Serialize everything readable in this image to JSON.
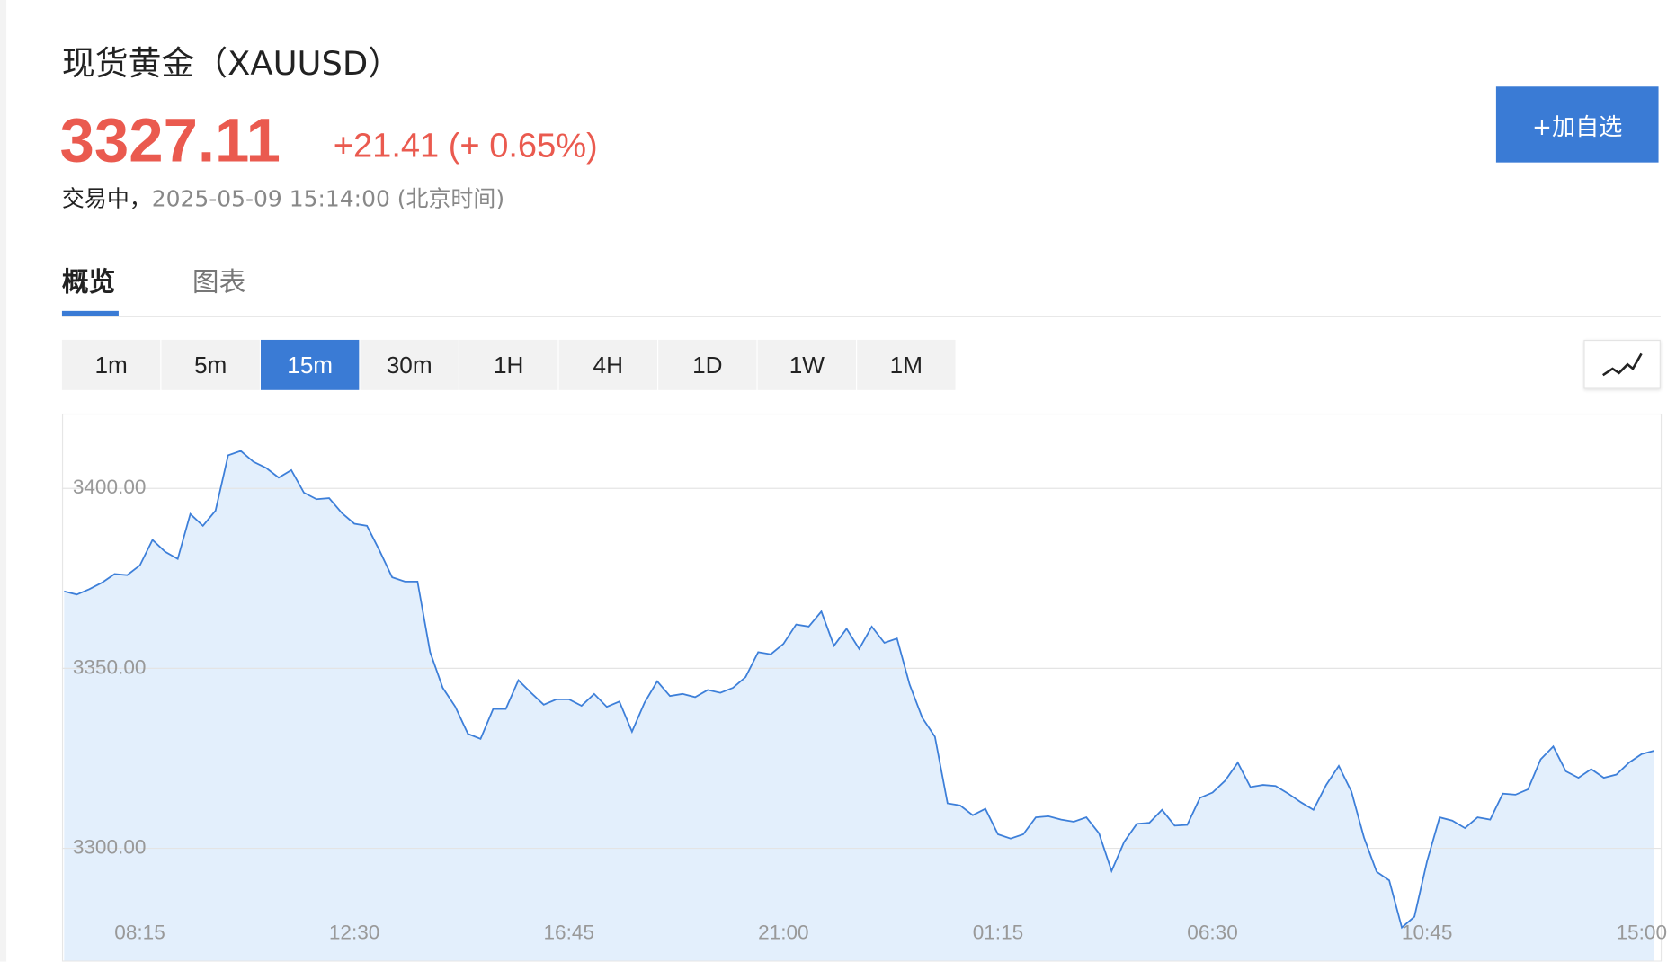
{
  "header": {
    "title": "现货黄金（XAUUSD）",
    "price": "3327.11",
    "change": "+21.41 (+ 0.65%)",
    "status": "交易中，",
    "time": "2025-05-09 15:14:00 (北京时间)",
    "button": "+加自选"
  },
  "tabs": {
    "items": [
      "概览",
      "图表"
    ],
    "active": 0
  },
  "intervals": {
    "items": [
      "1m",
      "5m",
      "15m",
      "30m",
      "1H",
      "4H",
      "1D",
      "1W",
      "1M"
    ],
    "active": 2
  },
  "chart_data": {
    "type": "area",
    "categories": [
      null,
      null,
      null,
      null,
      null,
      null,
      "08:15",
      null,
      null,
      null,
      null,
      null,
      null,
      null,
      null,
      null,
      null,
      null,
      null,
      null,
      null,
      null,
      null,
      "12:30",
      null,
      null,
      null,
      null,
      null,
      null,
      null,
      null,
      null,
      null,
      null,
      null,
      null,
      null,
      null,
      null,
      "16:45",
      null,
      null,
      null,
      null,
      null,
      null,
      null,
      null,
      null,
      null,
      null,
      null,
      null,
      null,
      null,
      null,
      "21:00",
      null,
      null,
      null,
      null,
      null,
      null,
      null,
      null,
      null,
      null,
      null,
      null,
      null,
      null,
      null,
      null,
      "01:15",
      null,
      null,
      null,
      null,
      null,
      null,
      null,
      null,
      null,
      null,
      null,
      null,
      null,
      null,
      null,
      null,
      "06:30",
      null,
      null,
      null,
      null,
      null,
      null,
      null,
      null,
      null,
      null,
      null,
      null,
      null,
      null,
      null,
      null,
      "10:45",
      null,
      null,
      null,
      null,
      null,
      null,
      null,
      null,
      null,
      null,
      null,
      null,
      null,
      null,
      null,
      null,
      "15:00",
      null
    ],
    "values": [
      3371.4,
      3370.5,
      3372.0,
      3373.8,
      3376.2,
      3375.9,
      3378.6,
      3385.7,
      3382.4,
      3380.4,
      3392.9,
      3389.6,
      3393.8,
      3409.2,
      3410.4,
      3407.4,
      3405.7,
      3403.0,
      3405.1,
      3398.8,
      3397.0,
      3397.3,
      3393.2,
      3390.2,
      3389.6,
      3382.7,
      3375.3,
      3374.1,
      3374.1,
      3354.5,
      3344.6,
      3339.3,
      3331.8,
      3330.4,
      3338.7,
      3338.7,
      3346.7,
      3343.2,
      3339.9,
      3341.4,
      3341.4,
      3339.6,
      3342.9,
      3339.3,
      3340.8,
      3332.4,
      3340.5,
      3346.4,
      3342.3,
      3342.9,
      3342.0,
      3344.0,
      3343.2,
      3344.6,
      3347.6,
      3354.5,
      3353.9,
      3356.8,
      3362.2,
      3361.6,
      3365.8,
      3356.3,
      3361.0,
      3355.4,
      3361.6,
      3357.1,
      3358.3,
      3345.5,
      3336.3,
      3331.0,
      3312.5,
      3311.9,
      3309.2,
      3311.0,
      3303.9,
      3302.7,
      3303.9,
      3308.6,
      3308.9,
      3308.0,
      3307.4,
      3308.6,
      3304.2,
      3293.7,
      3301.8,
      3306.8,
      3307.1,
      3310.7,
      3306.3,
      3306.5,
      3314.0,
      3315.5,
      3318.8,
      3323.8,
      3317.0,
      3317.6,
      3317.3,
      3315.2,
      3312.8,
      3310.7,
      3317.6,
      3322.9,
      3315.8,
      3303.0,
      3293.5,
      3291.1,
      3278.0,
      3281.0,
      3296.4,
      3308.6,
      3307.7,
      3305.6,
      3308.6,
      3308.0,
      3315.2,
      3314.9,
      3316.4,
      3324.7,
      3328.3,
      3321.4,
      3319.6,
      3322.0,
      3319.6,
      3320.5,
      3323.8,
      3326.2,
      3327.1
    ],
    "ylim": [
      3268.8,
      3420.8
    ],
    "yticks": [
      {
        "value": 3300,
        "label": "3300.00"
      },
      {
        "value": 3350,
        "label": "3350.00"
      },
      {
        "value": 3400,
        "label": "3400.00"
      }
    ],
    "color": "#3d7fd9",
    "fill": "#e3effc",
    "grid": true
  }
}
